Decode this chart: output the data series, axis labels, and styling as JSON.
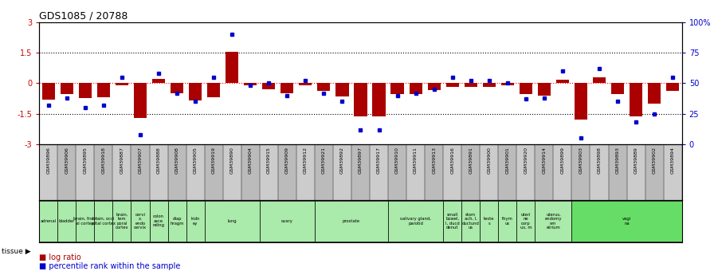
{
  "title": "GDS1085 / 20788",
  "samples": [
    "GSM39896",
    "GSM39906",
    "GSM39895",
    "GSM39918",
    "GSM39887",
    "GSM39907",
    "GSM39888",
    "GSM39908",
    "GSM39905",
    "GSM39919",
    "GSM39890",
    "GSM39904",
    "GSM39915",
    "GSM39909",
    "GSM39912",
    "GSM39921",
    "GSM39892",
    "GSM39897",
    "GSM39917",
    "GSM39910",
    "GSM39911",
    "GSM39913",
    "GSM39916",
    "GSM39891",
    "GSM39900",
    "GSM39901",
    "GSM39920",
    "GSM39914",
    "GSM39899",
    "GSM39903",
    "GSM39898",
    "GSM39893",
    "GSM39889",
    "GSM39902",
    "GSM39894"
  ],
  "log_ratio": [
    -0.8,
    -0.55,
    -0.75,
    -0.7,
    -0.1,
    -1.7,
    0.2,
    -0.5,
    -0.85,
    -0.7,
    1.55,
    -0.1,
    -0.3,
    -0.5,
    -0.1,
    -0.4,
    -0.65,
    -1.65,
    -1.65,
    -0.55,
    -0.55,
    -0.35,
    -0.2,
    -0.2,
    -0.2,
    -0.1,
    -0.55,
    -0.6,
    0.15,
    -1.8,
    0.3,
    -0.55,
    -1.65,
    -1.0,
    -0.4
  ],
  "percentile": [
    32,
    38,
    30,
    32,
    55,
    8,
    58,
    42,
    35,
    55,
    90,
    48,
    50,
    40,
    52,
    42,
    35,
    12,
    12,
    40,
    42,
    45,
    55,
    52,
    52,
    50,
    37,
    38,
    60,
    5,
    62,
    35,
    18,
    25,
    55
  ],
  "tissues": [
    {
      "label": "adrenal",
      "start": 0,
      "end": 1,
      "color": "#aaeaaa"
    },
    {
      "label": "bladder",
      "start": 1,
      "end": 2,
      "color": "#aaeaaa"
    },
    {
      "label": "brain, front\nal cortex",
      "start": 2,
      "end": 3,
      "color": "#aaeaaa"
    },
    {
      "label": "brain, occi\npital cortex",
      "start": 3,
      "end": 4,
      "color": "#aaeaaa"
    },
    {
      "label": "brain,\ntem\nporal\ncortex",
      "start": 4,
      "end": 5,
      "color": "#aaeaaa"
    },
    {
      "label": "cervi\nx,\nendo\ncervix",
      "start": 5,
      "end": 6,
      "color": "#aaeaaa"
    },
    {
      "label": "colon\nasce\nnding",
      "start": 6,
      "end": 7,
      "color": "#aaeaaa"
    },
    {
      "label": "diap\nhragm",
      "start": 7,
      "end": 8,
      "color": "#aaeaaa"
    },
    {
      "label": "kidn\ney",
      "start": 8,
      "end": 9,
      "color": "#aaeaaa"
    },
    {
      "label": "lung",
      "start": 9,
      "end": 12,
      "color": "#aaeaaa"
    },
    {
      "label": "ovary",
      "start": 12,
      "end": 15,
      "color": "#aaeaaa"
    },
    {
      "label": "prostate",
      "start": 15,
      "end": 19,
      "color": "#aaeaaa"
    },
    {
      "label": "salivary gland,\nparotid",
      "start": 19,
      "end": 22,
      "color": "#aaeaaa"
    },
    {
      "label": "small\nbowel,\nI, ducd\ndenut",
      "start": 22,
      "end": 23,
      "color": "#aaeaaa"
    },
    {
      "label": "stom\nach, I,\nductund\nus",
      "start": 23,
      "end": 24,
      "color": "#aaeaaa"
    },
    {
      "label": "teste\ns",
      "start": 24,
      "end": 25,
      "color": "#aaeaaa"
    },
    {
      "label": "thym\nus",
      "start": 25,
      "end": 26,
      "color": "#aaeaaa"
    },
    {
      "label": "uteri\nne\ncorp\nus, m",
      "start": 26,
      "end": 27,
      "color": "#aaeaaa"
    },
    {
      "label": "uterus,\nendomy\nom\netrium",
      "start": 27,
      "end": 29,
      "color": "#aaeaaa"
    },
    {
      "label": "vagi\nna",
      "start": 29,
      "end": 35,
      "color": "#66dd66"
    }
  ],
  "ylim": [
    -3,
    3
  ],
  "bar_color": "#aa0000",
  "dot_color": "#0000cc",
  "bg_color": "#ffffff",
  "left_axis_color": "#cc0000",
  "right_axis_color": "#0000cc",
  "xticklabel_bg": "#cccccc"
}
